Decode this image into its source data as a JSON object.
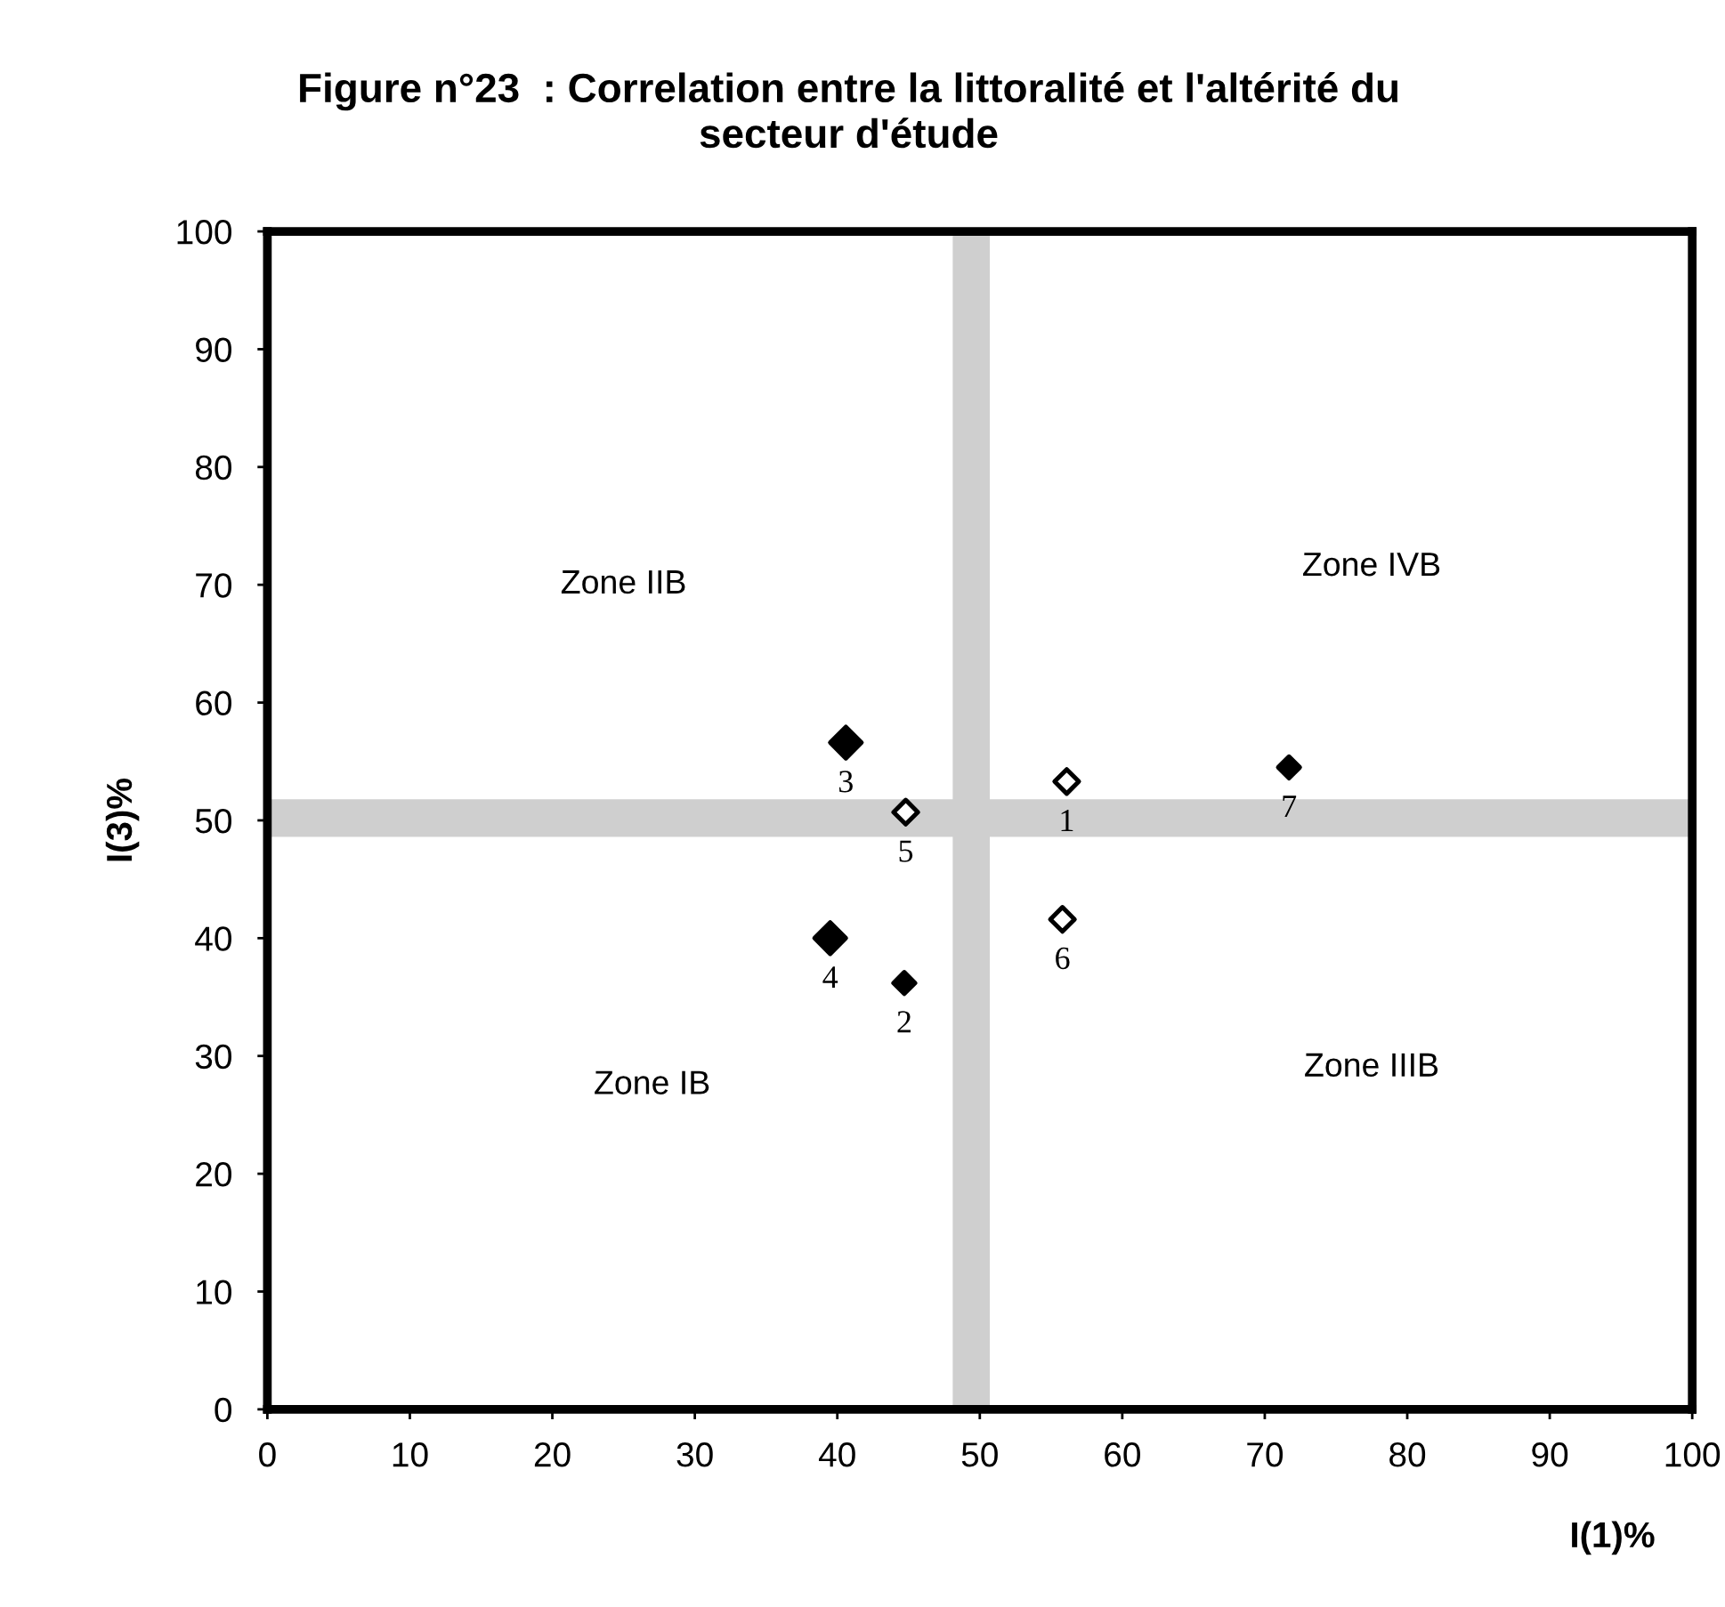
{
  "chart_data": {
    "type": "scatter",
    "title": "Figure n°23  : Correlation entre la littoralité et l'altérité du\nsecteur d'étude",
    "xlabel": "I(1)%",
    "ylabel": "I(3)%",
    "xlim": [
      0,
      100
    ],
    "ylim": [
      0,
      100
    ],
    "xticks": [
      0,
      10,
      20,
      30,
      40,
      50,
      60,
      70,
      80,
      90,
      100
    ],
    "yticks": [
      0,
      10,
      20,
      30,
      40,
      50,
      60,
      70,
      80,
      90,
      100
    ],
    "marker": "diamond",
    "bands": [
      {
        "axis": "x",
        "from": 48.1,
        "to": 50.7,
        "color": "#cfcfcf"
      },
      {
        "axis": "y",
        "from": 48.6,
        "to": 51.8,
        "color": "#cfcfcf"
      }
    ],
    "annotations": [
      "Zone IIB",
      "Zone IVB",
      "Zone IB",
      "Zone IIIB",
      {
        "text": "3",
        "x": 40.6,
        "y": 56.6
      },
      {
        "text": "4",
        "x": 39.5,
        "y": 40.0
      },
      {
        "text": "2",
        "x": 44.7,
        "y": 36.2
      },
      {
        "text": "7",
        "x": 71.7,
        "y": 54.5
      },
      {
        "text": "5",
        "x": 44.8,
        "y": 50.7
      },
      {
        "text": "6",
        "x": 55.8,
        "y": 41.6
      },
      {
        "text": "1",
        "x": 56.1,
        "y": 53.3
      }
    ],
    "series": [
      {
        "color": "#000000",
        "x": [
          40.6,
          39.5
        ],
        "values": [
          56.6,
          40.0
        ]
      },
      {
        "color": "#000000",
        "x": [
          44.7,
          71.7
        ],
        "values": [
          36.2,
          54.5
        ]
      },
      {
        "color": "#ffffff",
        "x": [
          44.8,
          55.8,
          56.1
        ],
        "values": [
          50.7,
          41.6,
          53.3
        ]
      }
    ]
  }
}
